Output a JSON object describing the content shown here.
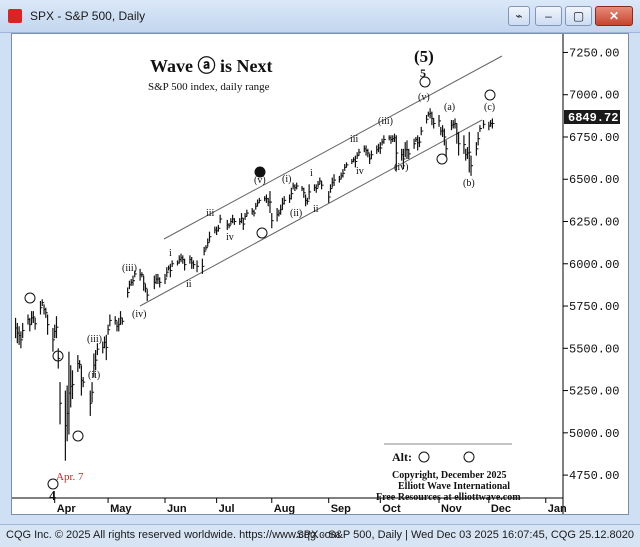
{
  "window": {
    "title": "SPX - S&P 500, Daily",
    "buttons": [
      "link-icon",
      "minimize-icon",
      "maximize-icon",
      "close-icon"
    ]
  },
  "status": {
    "left": "CQG Inc. © 2025 All rights reserved worldwide. https://www.cqg.com",
    "right": "SPX - S&P 500, Daily | Wed Dec 03 2025 16:07:45, CQG 25.12.8020"
  },
  "colors": {
    "accent": "#cc2222",
    "price_tag": "#1a1a1a",
    "channel": "#555555"
  },
  "chart_data": {
    "type": "bar",
    "title": "Wave ⓐ is Next",
    "subtitle": "S&P 500 index, daily range",
    "ylim": [
      4650,
      7300
    ],
    "yticks": [
      "7250.00",
      "7000.00",
      "6750.00",
      "6500.00",
      "6250.00",
      "6000.00",
      "5750.00",
      "5500.00",
      "5250.00",
      "5000.00",
      "4750.00"
    ],
    "last_price": "6849.72",
    "xticks": [
      "Apr",
      "May",
      "Jun",
      "Jul",
      "Aug",
      "Sep",
      "Oct",
      "Nov",
      "Dec",
      "Jan"
    ],
    "bars": [
      [
        "2025-03-10",
        5680,
        5560
      ],
      [
        "2025-03-11",
        5650,
        5530
      ],
      [
        "2025-03-12",
        5630,
        5520
      ],
      [
        "2025-03-13",
        5600,
        5500
      ],
      [
        "2025-03-14",
        5650,
        5560
      ],
      [
        "2025-03-17",
        5700,
        5640
      ],
      [
        "2025-03-18",
        5680,
        5600
      ],
      [
        "2025-03-19",
        5720,
        5640
      ],
      [
        "2025-03-20",
        5720,
        5650
      ],
      [
        "2025-03-21",
        5680,
        5610
      ],
      [
        "2025-03-24",
        5780,
        5700
      ],
      [
        "2025-03-25",
        5790,
        5750
      ],
      [
        "2025-03-26",
        5760,
        5700
      ],
      [
        "2025-03-27",
        5740,
        5680
      ],
      [
        "2025-03-28",
        5700,
        5580
      ],
      [
        "2025-03-31",
        5620,
        5480
      ],
      [
        "2025-04-01",
        5640,
        5560
      ],
      [
        "2025-04-02",
        5690,
        5560
      ],
      [
        "2025-04-03",
        5500,
        5380
      ],
      [
        "2025-04-04",
        5300,
        5050
      ],
      [
        "2025-04-07",
        5250,
        4835
      ],
      [
        "2025-04-08",
        5280,
        4950
      ],
      [
        "2025-04-09",
        5480,
        4990
      ],
      [
        "2025-04-10",
        5400,
        5150
      ],
      [
        "2025-04-11",
        5370,
        5200
      ],
      [
        "2025-04-14",
        5460,
        5360
      ],
      [
        "2025-04-15",
        5430,
        5380
      ],
      [
        "2025-04-16",
        5400,
        5220
      ],
      [
        "2025-04-17",
        5330,
        5270
      ],
      [
        "2025-04-21",
        5250,
        5100
      ],
      [
        "2025-04-22",
        5300,
        5180
      ],
      [
        "2025-04-23",
        5470,
        5330
      ],
      [
        "2025-04-24",
        5490,
        5370
      ],
      [
        "2025-04-25",
        5530,
        5460
      ],
      [
        "2025-04-28",
        5540,
        5470
      ],
      [
        "2025-04-29",
        5570,
        5500
      ],
      [
        "2025-04-30",
        5580,
        5430
      ],
      [
        "2025-05-01",
        5640,
        5580
      ],
      [
        "2025-05-02",
        5700,
        5630
      ],
      [
        "2025-05-05",
        5690,
        5640
      ],
      [
        "2025-05-06",
        5660,
        5600
      ],
      [
        "2025-05-07",
        5680,
        5600
      ],
      [
        "2025-05-08",
        5720,
        5640
      ],
      [
        "2025-05-09",
        5680,
        5640
      ],
      [
        "2025-05-12",
        5860,
        5800
      ],
      [
        "2025-05-13",
        5900,
        5850
      ],
      [
        "2025-05-14",
        5910,
        5870
      ],
      [
        "2025-05-15",
        5930,
        5870
      ],
      [
        "2025-05-16",
        5960,
        5920
      ],
      [
        "2025-05-19",
        5970,
        5900
      ],
      [
        "2025-05-20",
        5950,
        5920
      ],
      [
        "2025-05-21",
        5930,
        5840
      ],
      [
        "2025-05-22",
        5880,
        5830
      ],
      [
        "2025-05-23",
        5850,
        5780
      ],
      [
        "2025-05-27",
        5930,
        5850
      ],
      [
        "2025-05-28",
        5940,
        5880
      ],
      [
        "2025-05-29",
        5940,
        5880
      ],
      [
        "2025-05-30",
        5920,
        5860
      ],
      [
        "2025-06-02",
        5940,
        5880
      ],
      [
        "2025-06-03",
        5980,
        5920
      ],
      [
        "2025-06-04",
        5990,
        5960
      ],
      [
        "2025-06-05",
        6000,
        5920
      ],
      [
        "2025-06-06",
        6020,
        5980
      ],
      [
        "2025-06-09",
        6020,
        5990
      ],
      [
        "2025-06-10",
        6050,
        6000
      ],
      [
        "2025-06-11",
        6060,
        6010
      ],
      [
        "2025-06-12",
        6050,
        6000
      ],
      [
        "2025-06-13",
        6030,
        5960
      ],
      [
        "2025-06-16",
        6050,
        6000
      ],
      [
        "2025-06-17",
        6040,
        5970
      ],
      [
        "2025-06-18",
        6020,
        5970
      ],
      [
        "2025-06-20",
        6020,
        5950
      ],
      [
        "2025-06-23",
        6030,
        5940
      ],
      [
        "2025-06-24",
        6100,
        6050
      ],
      [
        "2025-06-25",
        6110,
        6080
      ],
      [
        "2025-06-26",
        6150,
        6100
      ],
      [
        "2025-06-27",
        6190,
        6130
      ],
      [
        "2025-06-30",
        6220,
        6180
      ],
      [
        "2025-07-01",
        6220,
        6170
      ],
      [
        "2025-07-02",
        6230,
        6190
      ],
      [
        "2025-07-03",
        6290,
        6240
      ],
      [
        "2025-07-07",
        6260,
        6200
      ],
      [
        "2025-07-08",
        6240,
        6210
      ],
      [
        "2025-07-09",
        6270,
        6230
      ],
      [
        "2025-07-10",
        6290,
        6240
      ],
      [
        "2025-07-11",
        6270,
        6230
      ],
      [
        "2025-07-14",
        6270,
        6230
      ],
      [
        "2025-07-15",
        6300,
        6240
      ],
      [
        "2025-07-16",
        6270,
        6200
      ],
      [
        "2025-07-17",
        6300,
        6260
      ],
      [
        "2025-07-18",
        6320,
        6280
      ],
      [
        "2025-07-21",
        6330,
        6290
      ],
      [
        "2025-07-22",
        6320,
        6280
      ],
      [
        "2025-07-23",
        6360,
        6320
      ],
      [
        "2025-07-24",
        6380,
        6340
      ],
      [
        "2025-07-25",
        6390,
        6360
      ],
      [
        "2025-07-28",
        6400,
        6370
      ],
      [
        "2025-07-29",
        6410,
        6360
      ],
      [
        "2025-07-30",
        6390,
        6340
      ],
      [
        "2025-07-31",
        6430,
        6300
      ],
      [
        "2025-08-01",
        6300,
        6210
      ],
      [
        "2025-08-04",
        6330,
        6250
      ],
      [
        "2025-08-05",
        6320,
        6280
      ],
      [
        "2025-08-06",
        6350,
        6290
      ],
      [
        "2025-08-07",
        6390,
        6320
      ],
      [
        "2025-08-08",
        6400,
        6350
      ],
      [
        "2025-08-11",
        6410,
        6360
      ],
      [
        "2025-08-12",
        6450,
        6380
      ],
      [
        "2025-08-13",
        6480,
        6440
      ],
      [
        "2025-08-14",
        6470,
        6430
      ],
      [
        "2025-08-15",
        6480,
        6440
      ],
      [
        "2025-08-18",
        6460,
        6430
      ],
      [
        "2025-08-19",
        6450,
        6390
      ],
      [
        "2025-08-20",
        6410,
        6340
      ],
      [
        "2025-08-21",
        6390,
        6350
      ],
      [
        "2025-08-22",
        6470,
        6380
      ],
      [
        "2025-08-25",
        6470,
        6430
      ],
      [
        "2025-08-26",
        6470,
        6420
      ],
      [
        "2025-08-27",
        6490,
        6450
      ],
      [
        "2025-08-28",
        6510,
        6470
      ],
      [
        "2025-08-29",
        6490,
        6440
      ],
      [
        "2025-09-02",
        6430,
        6360
      ],
      [
        "2025-09-03",
        6470,
        6420
      ],
      [
        "2025-09-04",
        6510,
        6450
      ],
      [
        "2025-09-05",
        6530,
        6460
      ],
      [
        "2025-09-08",
        6520,
        6480
      ],
      [
        "2025-09-09",
        6540,
        6500
      ],
      [
        "2025-09-10",
        6560,
        6510
      ],
      [
        "2025-09-11",
        6590,
        6550
      ],
      [
        "2025-09-12",
        6600,
        6570
      ],
      [
        "2025-09-15",
        6620,
        6590
      ],
      [
        "2025-09-16",
        6630,
        6600
      ],
      [
        "2025-09-17",
        6640,
        6570
      ],
      [
        "2025-09-18",
        6660,
        6620
      ],
      [
        "2025-09-19",
        6680,
        6640
      ],
      [
        "2025-09-22",
        6700,
        6660
      ],
      [
        "2025-09-23",
        6700,
        6640
      ],
      [
        "2025-09-24",
        6680,
        6630
      ],
      [
        "2025-09-25",
        6650,
        6590
      ],
      [
        "2025-09-26",
        6670,
        6620
      ],
      [
        "2025-09-29",
        6700,
        6650
      ],
      [
        "2025-09-30",
        6710,
        6660
      ],
      [
        "2025-10-01",
        6720,
        6650
      ],
      [
        "2025-10-02",
        6740,
        6700
      ],
      [
        "2025-10-03",
        6760,
        6710
      ],
      [
        "2025-10-06",
        6760,
        6730
      ],
      [
        "2025-10-07",
        6760,
        6710
      ],
      [
        "2025-10-08",
        6760,
        6720
      ],
      [
        "2025-10-09",
        6770,
        6720
      ],
      [
        "2025-10-10",
        6760,
        6550
      ],
      [
        "2025-10-13",
        6680,
        6610
      ],
      [
        "2025-10-14",
        6680,
        6560
      ],
      [
        "2025-10-15",
        6720,
        6630
      ],
      [
        "2025-10-16",
        6730,
        6620
      ],
      [
        "2025-10-17",
        6680,
        6620
      ],
      [
        "2025-10-20",
        6740,
        6680
      ],
      [
        "2025-10-21",
        6750,
        6720
      ],
      [
        "2025-10-22",
        6760,
        6670
      ],
      [
        "2025-10-23",
        6750,
        6690
      ],
      [
        "2025-10-24",
        6810,
        6760
      ],
      [
        "2025-10-27",
        6880,
        6830
      ],
      [
        "2025-10-28",
        6900,
        6870
      ],
      [
        "2025-10-29",
        6920,
        6860
      ],
      [
        "2025-10-30",
        6900,
        6820
      ],
      [
        "2025-10-31",
        6860,
        6800
      ],
      [
        "2025-11-03",
        6880,
        6810
      ],
      [
        "2025-11-04",
        6810,
        6760
      ],
      [
        "2025-11-05",
        6820,
        6750
      ],
      [
        "2025-11-06",
        6800,
        6700
      ],
      [
        "2025-11-07",
        6730,
        6630
      ],
      [
        "2025-11-10",
        6850,
        6790
      ],
      [
        "2025-11-11",
        6850,
        6800
      ],
      [
        "2025-11-12",
        6860,
        6800
      ],
      [
        "2025-11-13",
        6830,
        6710
      ],
      [
        "2025-11-14",
        6780,
        6640
      ],
      [
        "2025-11-17",
        6760,
        6650
      ],
      [
        "2025-11-18",
        6680,
        6610
      ],
      [
        "2025-11-19",
        6690,
        6620
      ],
      [
        "2025-11-20",
        6780,
        6540
      ],
      [
        "2025-11-21",
        6640,
        6520
      ],
      [
        "2025-11-24",
        6720,
        6640
      ],
      [
        "2025-11-25",
        6780,
        6700
      ],
      [
        "2025-11-26",
        6820,
        6780
      ],
      [
        "2025-11-28",
        6850,
        6800
      ],
      [
        "2025-12-01",
        6840,
        6790
      ],
      [
        "2025-12-02",
        6850,
        6810
      ],
      [
        "2025-12-03",
        6860,
        6800
      ]
    ],
    "annotations": {
      "wave5_big": "(5)",
      "wave5_small": "5",
      "wave4": "4",
      "apr7": "Apr. 7",
      "labels": [
        "(iii)",
        "(iv)",
        "(i)",
        "(ii)",
        "i",
        "ii",
        "iii",
        "iv",
        "(v)",
        "(a)",
        "(b)",
        "(c)",
        "v"
      ],
      "alt_label": "Alt:",
      "copyright_line1": "Copyright, December 2025",
      "copyright_line2": "Elliott Wave International",
      "copyright_line3": "Free Resources at elliottwave.com"
    }
  }
}
